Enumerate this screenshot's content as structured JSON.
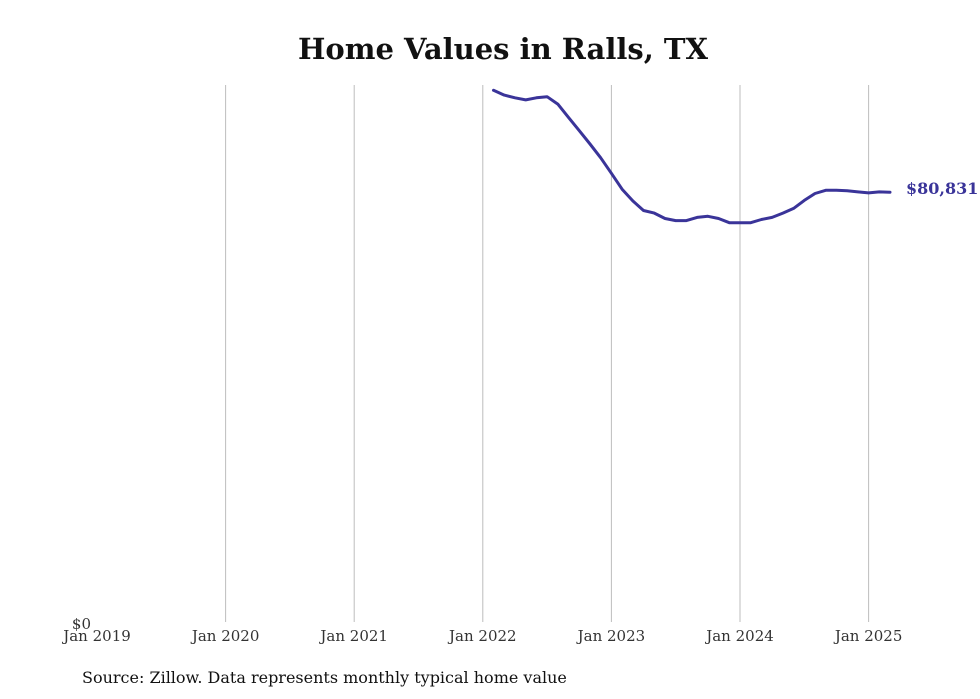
{
  "chart_data": {
    "type": "line",
    "title": "Home Values in Ralls, TX",
    "xlabel": "",
    "ylabel": "",
    "x_ticks": [
      "Jan 2019",
      "Jan 2020",
      "Jan 2021",
      "Jan 2022",
      "Jan 2023",
      "Jan 2024",
      "Jan 2025"
    ],
    "y_ticks": [
      "$0"
    ],
    "ylim": [
      0,
      101000
    ],
    "xlim": [
      "2019-01",
      "2025-06"
    ],
    "grid": "vertical",
    "line_color": "#3a3499",
    "end_label": "$80,831",
    "series": [
      {
        "x": [
          "2022-02",
          "2022-03",
          "2022-04",
          "2022-05",
          "2022-06",
          "2022-07",
          "2022-08",
          "2022-09",
          "2022-10",
          "2022-11",
          "2022-12",
          "2023-01",
          "2023-02",
          "2023-03",
          "2023-04",
          "2023-05",
          "2023-06",
          "2023-07",
          "2023-08",
          "2023-09",
          "2023-10",
          "2023-11",
          "2023-12",
          "2024-01",
          "2024-02",
          "2024-03",
          "2024-04",
          "2024-05",
          "2024-06",
          "2024-07",
          "2024-08",
          "2024-09",
          "2024-10",
          "2024-11",
          "2024-12",
          "2025-01",
          "2025-02",
          "2025-03"
        ],
        "values": [
          100000,
          99100,
          98600,
          98200,
          98600,
          98800,
          97400,
          94900,
          92400,
          89900,
          87300,
          84400,
          81400,
          79200,
          77400,
          76900,
          75900,
          75500,
          75500,
          76100,
          76300,
          75900,
          75100,
          75100,
          75100,
          75700,
          76100,
          76900,
          77800,
          79300,
          80600,
          81200,
          81200,
          81100,
          80900,
          80700,
          80900,
          80831
        ]
      }
    ]
  },
  "source": "Source: Zillow. Data represents monthly typical home value"
}
